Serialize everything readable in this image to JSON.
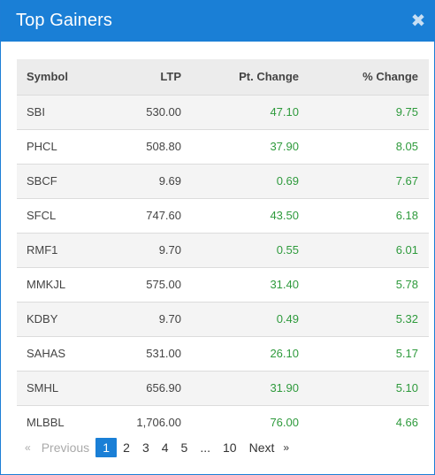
{
  "modal": {
    "title": "Top Gainers",
    "close_glyph": "✖",
    "close_icon": "close-icon"
  },
  "table": {
    "headers": {
      "symbol": "Symbol",
      "ltp": "LTP",
      "pt_change": "Pt. Change",
      "pct_change": "% Change"
    },
    "rows": [
      {
        "symbol": "SBI",
        "ltp": "530.00",
        "pt_change": "47.10",
        "pct_change": "9.75"
      },
      {
        "symbol": "PHCL",
        "ltp": "508.80",
        "pt_change": "37.90",
        "pct_change": "8.05"
      },
      {
        "symbol": "SBCF",
        "ltp": "9.69",
        "pt_change": "0.69",
        "pct_change": "7.67"
      },
      {
        "symbol": "SFCL",
        "ltp": "747.60",
        "pt_change": "43.50",
        "pct_change": "6.18"
      },
      {
        "symbol": "RMF1",
        "ltp": "9.70",
        "pt_change": "0.55",
        "pct_change": "6.01"
      },
      {
        "symbol": "MMKJL",
        "ltp": "575.00",
        "pt_change": "31.40",
        "pct_change": "5.78"
      },
      {
        "symbol": "KDBY",
        "ltp": "9.70",
        "pt_change": "0.49",
        "pct_change": "5.32"
      },
      {
        "symbol": "SAHAS",
        "ltp": "531.00",
        "pt_change": "26.10",
        "pct_change": "5.17"
      },
      {
        "symbol": "SMHL",
        "ltp": "656.90",
        "pt_change": "31.90",
        "pct_change": "5.10"
      },
      {
        "symbol": "MLBBL",
        "ltp": "1,706.00",
        "pt_change": "76.00",
        "pct_change": "4.66"
      }
    ]
  },
  "pagination": {
    "prev_arrow": "«",
    "prev_label": "Previous",
    "pages": [
      "1",
      "2",
      "3",
      "4",
      "5"
    ],
    "current_page": "1",
    "ellipsis": "...",
    "last_page": "10",
    "next_label": "Next",
    "next_arrow": "»"
  },
  "colors": {
    "header_bg": "#1a7fd6",
    "positive": "#2e9a3c",
    "current_page_bg": "#1a7fd6"
  }
}
